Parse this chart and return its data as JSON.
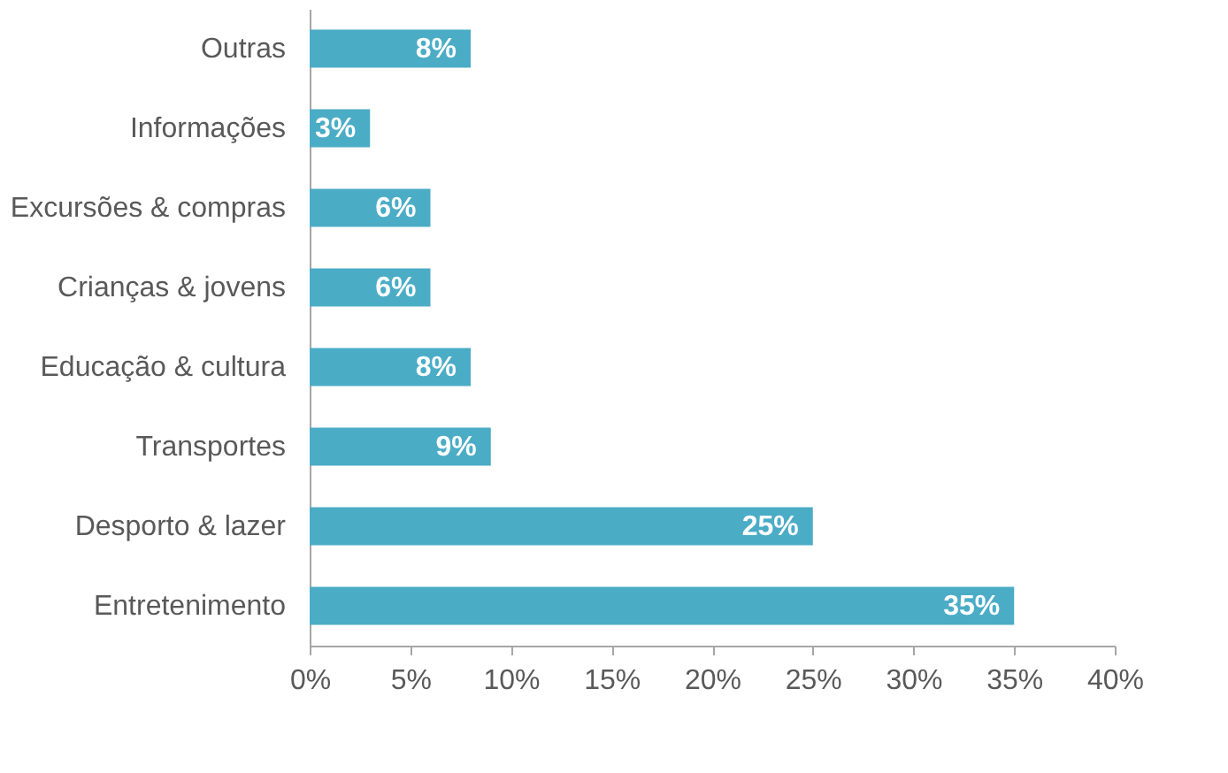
{
  "chart_data": {
    "type": "bar",
    "orientation": "horizontal",
    "categories": [
      "Outras",
      "Informações",
      "Excursões & compras",
      "Crianças & jovens",
      "Educação & cultura",
      "Transportes",
      "Desporto & lazer",
      "Entretenimento"
    ],
    "values": [
      8,
      3,
      6,
      6,
      8,
      9,
      25,
      35
    ],
    "color": "#4bacc6",
    "xlim": [
      0,
      40
    ],
    "xticks": [
      {
        "value": 0,
        "label": "0%"
      },
      {
        "value": 5,
        "label": "5%"
      },
      {
        "value": 10,
        "label": "10%"
      },
      {
        "value": 15,
        "label": "15%"
      },
      {
        "value": 20,
        "label": "20%"
      },
      {
        "value": 25,
        "label": "25%"
      },
      {
        "value": 30,
        "label": "30%"
      },
      {
        "value": 35,
        "label": "35%"
      },
      {
        "value": 40,
        "label": "40%"
      }
    ],
    "value_labels": [
      "8%",
      "3%",
      "6%",
      "6%",
      "8%",
      "9%",
      "25%",
      "35%"
    ],
    "grid": false
  }
}
